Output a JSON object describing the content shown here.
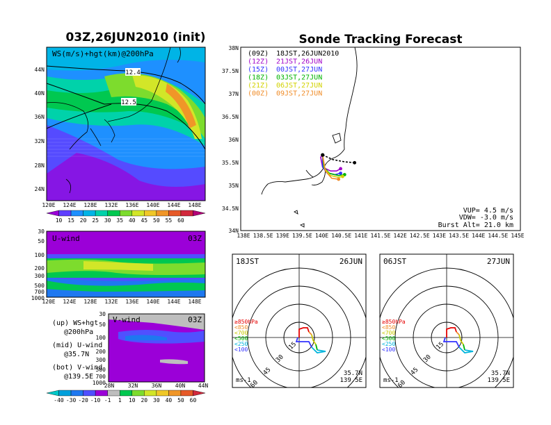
{
  "left_panel": {
    "title": "03Z,26JUN2010 (init)",
    "map_label": "WS(m/s)+hgt(km)@200hPa",
    "contour_labels": [
      "12.4",
      "12.5"
    ],
    "lat_ticks": [
      "44N",
      "40N",
      "36N",
      "32N",
      "28N",
      "24N"
    ],
    "lon_ticks": [
      "120E",
      "124E",
      "128E",
      "132E",
      "136E",
      "140E",
      "144E",
      "148E"
    ],
    "ws_colorbar": [
      "10",
      "15",
      "20",
      "25",
      "30",
      "35",
      "40",
      "45",
      "50",
      "55",
      "60"
    ],
    "ws_colors": [
      "#9b00d8",
      "#5f3fff",
      "#1e90ff",
      "#00b4e6",
      "#00d2aa",
      "#00c850",
      "#7ddc2d",
      "#d2e628",
      "#f0c828",
      "#f09628",
      "#e65a28",
      "#d2283c",
      "#b40078"
    ],
    "u_panel": {
      "label": "U-wind",
      "time": "03Z",
      "p_ticks": [
        "30",
        "50",
        "100",
        "200",
        "300",
        "500",
        "700",
        "1000"
      ],
      "lon_ticks": [
        "120E",
        "124E",
        "128E",
        "132E",
        "136E",
        "140E",
        "144E",
        "148E"
      ]
    },
    "v_panel": {
      "label": "V-wind",
      "time": "03Z",
      "p_ticks": [
        "30",
        "50",
        "100",
        "200",
        "300",
        "500",
        "700",
        "1000"
      ],
      "lat_ticks": [
        "28N",
        "32N",
        "36N",
        "40N",
        "44N"
      ]
    },
    "legend_lines": [
      "(up) WS+hgt",
      "@200hPa",
      "(mid) U-wind",
      "@35.7N",
      "(bot) V-wind",
      "@139.5E"
    ],
    "wind_colorbar": [
      "-40",
      "-30",
      "-20",
      "-10",
      "-1",
      "1",
      "10",
      "20",
      "30",
      "40",
      "50",
      "60"
    ],
    "wind_colors": [
      "#00c8c8",
      "#00a0dc",
      "#1e78f0",
      "#5050ff",
      "#9b00d8",
      "#bebebe",
      "#00c850",
      "#7ddc2d",
      "#d2e628",
      "#f0c828",
      "#f09628",
      "#e65a28",
      "#d2283c"
    ]
  },
  "tracking": {
    "title": "Sonde Tracking Forecast",
    "lat_ticks": [
      "38N",
      "37.5N",
      "37N",
      "36.5N",
      "36N",
      "35.5N",
      "35N",
      "34.5N",
      "34N"
    ],
    "lon_ticks": [
      "138E",
      "138.5E",
      "139E",
      "139.5E",
      "140E",
      "140.5E",
      "141E",
      "141.5E",
      "142E",
      "142.5E",
      "143E",
      "143.5E",
      "144E",
      "144.5E",
      "145E"
    ],
    "launches": [
      {
        "utc": "(09Z)",
        "jst": "18JST,26JUN2010",
        "color": "#000000"
      },
      {
        "utc": "(12Z)",
        "jst": "21JST,26JUN",
        "color": "#a000c8"
      },
      {
        "utc": "(15Z)",
        "jst": "00JST,27JUN",
        "color": "#3232ff"
      },
      {
        "utc": "(18Z)",
        "jst": "03JST,27JUN",
        "color": "#00b400"
      },
      {
        "utc": "(21Z)",
        "jst": "06JST,27JUN",
        "color": "#d2d200"
      },
      {
        "utc": "(00Z)",
        "jst": "09JST,27JUN",
        "color": "#f08c28"
      }
    ],
    "info": [
      "VUP= 4.5 m/s",
      "VDW= -3.0 m/s",
      "Burst Alt= 21.0 km"
    ]
  },
  "chart_data": [
    {
      "type": "heatmap",
      "title": "03Z,26JUN2010 (init)",
      "label": "WS(m/s)+hgt(km)@200hPa",
      "x_ticks": [
        "120E",
        "124E",
        "128E",
        "132E",
        "136E",
        "140E",
        "144E",
        "148E"
      ],
      "y_ticks": [
        "44N",
        "40N",
        "36N",
        "32N",
        "28N",
        "24N"
      ],
      "xlim": [
        120,
        150
      ],
      "ylim": [
        22,
        47
      ],
      "colorbar": [
        10,
        15,
        20,
        25,
        30,
        35,
        40,
        45,
        50,
        55,
        60
      ],
      "contours": [
        "12.4",
        "12.5"
      ]
    },
    {
      "type": "line",
      "title": "Sonde Tracking Forecast",
      "xlim": [
        138,
        145
      ],
      "ylim": [
        34,
        38
      ],
      "launch_point": [
        140.05,
        35.65
      ],
      "series": [
        {
          "name": "(09Z) 18JST,26JUN2010",
          "x": [
            140.05,
            140.3,
            140.6,
            140.85
          ],
          "y": [
            35.65,
            35.55,
            35.5,
            35.48
          ]
        },
        {
          "name": "(12Z) 21JST,26JUN",
          "x": [
            140.05,
            140.0,
            140.05,
            140.25,
            140.4,
            140.5
          ],
          "y": [
            35.65,
            35.6,
            35.38,
            35.3,
            35.3,
            35.35
          ]
        },
        {
          "name": "(15Z) 00JST,27JUN",
          "x": [
            140.05,
            140.05,
            140.15,
            140.35,
            140.5
          ],
          "y": [
            35.65,
            35.4,
            35.26,
            35.22,
            35.25
          ]
        },
        {
          "name": "(18Z) 03JST,27JUN",
          "x": [
            140.05,
            140.08,
            140.22,
            140.45,
            140.6
          ],
          "y": [
            35.65,
            35.38,
            35.25,
            35.2,
            35.22
          ]
        },
        {
          "name": "(21Z) 06JST,27JUN",
          "x": [
            140.05,
            140.1,
            140.25,
            140.45,
            140.55
          ],
          "y": [
            35.65,
            35.35,
            35.2,
            35.16,
            35.18
          ]
        },
        {
          "name": "(00Z) 09JST,27JUN",
          "x": [
            140.05,
            140.12,
            140.28,
            140.45
          ],
          "y": [
            35.65,
            35.3,
            35.14,
            35.12
          ]
        }
      ]
    }
  ],
  "hodo1": {
    "time": "18JST",
    "date": "26JUN",
    "ring_labels": [
      "15",
      "30",
      "45",
      "60"
    ],
    "loc_lat": "35.7N",
    "loc_lon": "139.5E",
    "unit": "ms-1"
  },
  "hodo2": {
    "time": "06JST",
    "date": "27JUN",
    "ring_labels": [
      "15",
      "30",
      "45",
      "60"
    ],
    "loc_lat": "35.7N",
    "loc_lon": "139.5E",
    "unit": "ms-1"
  },
  "hodo_legend": [
    {
      "label": "≥850hPa",
      "color": "#e60000"
    },
    {
      "label": "<850",
      "color": "#f08c28"
    },
    {
      "label": "<700",
      "color": "#c8c800"
    },
    {
      "label": "<500",
      "color": "#00b400"
    },
    {
      "label": "<250",
      "color": "#00b4dc"
    },
    {
      "label": "<100",
      "color": "#3232ff"
    }
  ]
}
